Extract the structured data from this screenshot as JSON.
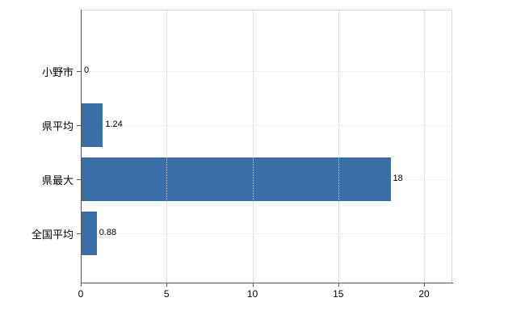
{
  "chart_data": {
    "type": "bar",
    "orientation": "horizontal",
    "title": "",
    "categories": [
      "小野市",
      "県平均",
      "県最大",
      "全国平均"
    ],
    "values": [
      0,
      1.24,
      18,
      0.88
    ],
    "value_labels": [
      "0",
      "1.24",
      "18",
      "0.88"
    ],
    "xlim": [
      0,
      20
    ],
    "x_ticks": [
      0,
      5,
      10,
      15,
      20
    ],
    "bar_color": "#3a6ea8",
    "grid": true,
    "legend": "none",
    "background_color": "#ffffff"
  }
}
